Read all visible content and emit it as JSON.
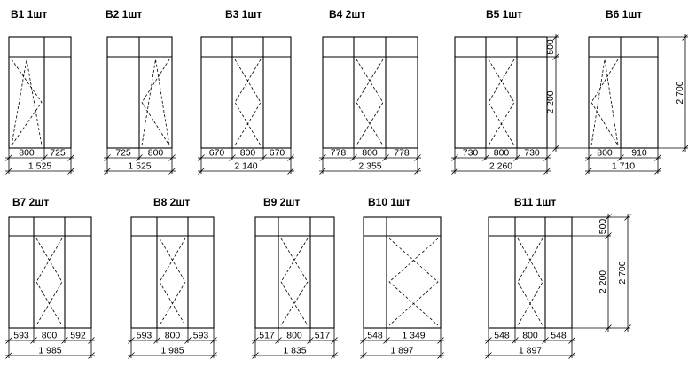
{
  "windows": [
    {
      "id": "w1",
      "title": "В1 1шт",
      "sashes": [
        {
          "open": "right"
        },
        {
          "open": "none"
        }
      ],
      "segments": [
        "800",
        "725"
      ],
      "total": "1 525"
    },
    {
      "id": "w2",
      "title": "В2 1шт",
      "sashes": [
        {
          "open": "none"
        },
        {
          "open": "left"
        }
      ],
      "segments": [
        "725",
        "800"
      ],
      "total": "1 525"
    },
    {
      "id": "w3",
      "title": "В3 1шт",
      "sashes": [
        {
          "open": "none"
        },
        {
          "open": "both"
        },
        {
          "open": "none"
        }
      ],
      "segments": [
        "670",
        "800",
        "670"
      ],
      "total": "2 140"
    },
    {
      "id": "w4",
      "title": "В4 2шт",
      "sashes": [
        {
          "open": "none"
        },
        {
          "open": "both"
        },
        {
          "open": "none"
        }
      ],
      "segments": [
        "778",
        "800",
        "778"
      ],
      "total": "2 355"
    },
    {
      "id": "w5",
      "title": "В5 1шт",
      "sashes": [
        {
          "open": "none"
        },
        {
          "open": "both"
        },
        {
          "open": "none"
        }
      ],
      "segments": [
        "730",
        "800",
        "730"
      ],
      "total": "2 260"
    },
    {
      "id": "w6",
      "title": "В6 1шт",
      "sashes": [
        {
          "open": "left"
        },
        {
          "open": "none"
        }
      ],
      "segments": [
        "800",
        "910"
      ],
      "total": "1 710"
    },
    {
      "id": "w7",
      "title": "В7 2шт",
      "sashes": [
        {
          "open": "none"
        },
        {
          "open": "both"
        },
        {
          "open": "none"
        }
      ],
      "segments": [
        "593",
        "800",
        "592"
      ],
      "total": "1 985"
    },
    {
      "id": "w8",
      "title": "В8 2шт",
      "sashes": [
        {
          "open": "none"
        },
        {
          "open": "both"
        },
        {
          "open": "none"
        }
      ],
      "segments": [
        "593",
        "800",
        "593"
      ],
      "total": "1 985"
    },
    {
      "id": "w9",
      "title": "В9 2шт",
      "sashes": [
        {
          "open": "none"
        },
        {
          "open": "both"
        },
        {
          "open": "none"
        }
      ],
      "segments": [
        "517",
        "800",
        "517"
      ],
      "total": "1 835"
    },
    {
      "id": "w10",
      "title": "В10 1шт",
      "sashes": [
        {
          "open": "none"
        },
        {
          "open": "both"
        }
      ],
      "segments": [
        "548",
        "1 349"
      ],
      "total": "1 897"
    },
    {
      "id": "w11",
      "title": "В11 1шт",
      "sashes": [
        {
          "open": "none"
        },
        {
          "open": "both"
        },
        {
          "open": "none"
        }
      ],
      "segments": [
        "548",
        "800",
        "548"
      ],
      "total": "1 897"
    }
  ],
  "height_dims": [
    {
      "id": "h1",
      "transom": "500",
      "lower": "2 200",
      "total": "2 700"
    },
    {
      "id": "h2",
      "transom": "500",
      "lower": "2 200",
      "total": "2 700"
    }
  ]
}
